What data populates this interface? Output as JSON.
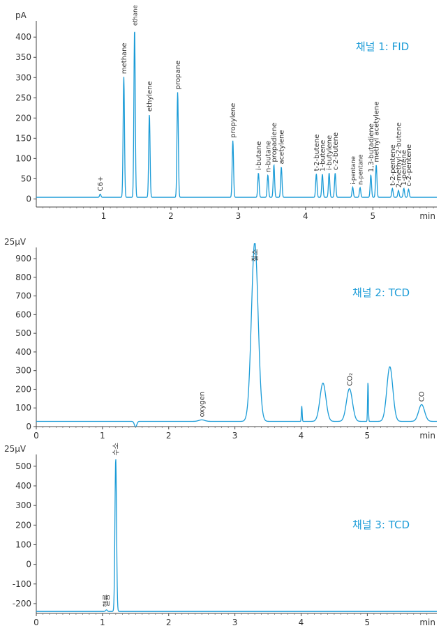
{
  "chart_data": [
    {
      "type": "line",
      "title": "채널 1: FID",
      "ylabel": "pA",
      "xlabel": "min",
      "xlim": [
        0,
        5.95
      ],
      "ylim": [
        -20,
        440
      ],
      "xticks": [
        1,
        2,
        3,
        4,
        5
      ],
      "yticks": [
        0,
        50,
        100,
        150,
        200,
        250,
        300,
        350,
        400
      ],
      "baseline": 4,
      "color": "#1a9bd7",
      "peaks": [
        {
          "label": "C6+",
          "x": 0.95,
          "height": 8
        },
        {
          "label": "methane",
          "x": 1.3,
          "height": 298
        },
        {
          "label": "ethane",
          "x": 1.46,
          "height": 417
        },
        {
          "label": "ethylene",
          "x": 1.68,
          "height": 205
        },
        {
          "label": "propane",
          "x": 2.1,
          "height": 260
        },
        {
          "label": "propylene",
          "x": 2.92,
          "height": 140
        },
        {
          "label": "i-butane",
          "x": 3.3,
          "height": 60
        },
        {
          "label": "n-butane",
          "x": 3.44,
          "height": 55
        },
        {
          "label": "propadiene",
          "x": 3.53,
          "height": 80
        },
        {
          "label": "acetylene",
          "x": 3.64,
          "height": 75
        },
        {
          "label": "t-2-butene",
          "x": 4.16,
          "height": 58
        },
        {
          "label": "1-butene",
          "x": 4.25,
          "height": 57
        },
        {
          "label": "i-butylene",
          "x": 4.35,
          "height": 60
        },
        {
          "label": "c-2-butene",
          "x": 4.44,
          "height": 60
        },
        {
          "label": "i-pentane",
          "x": 4.7,
          "height": 25
        },
        {
          "label": "n-pentane",
          "x": 4.81,
          "height": 24
        },
        {
          "label": "1,3-butadiene",
          "x": 4.97,
          "height": 55
        },
        {
          "label": "methyl acetylene",
          "x": 5.05,
          "height": 80
        },
        {
          "label": "t-2-pentene",
          "x": 5.29,
          "height": 22
        },
        {
          "label": "2-methyl-2-butene",
          "x": 5.38,
          "height": 17
        },
        {
          "label": "1-pentene",
          "x": 5.46,
          "height": 22
        },
        {
          "label": "c-2-pentene",
          "x": 5.53,
          "height": 20
        }
      ]
    },
    {
      "type": "line",
      "title": "채널 2: TCD",
      "ylabel": "25µV",
      "xlabel": "min",
      "xlim": [
        0,
        6.05
      ],
      "ylim": [
        0,
        960
      ],
      "xticks": [
        0,
        1,
        2,
        3,
        4,
        5
      ],
      "yticks": [
        0,
        100,
        200,
        300,
        400,
        500,
        600,
        700,
        800,
        900
      ],
      "baseline": 28,
      "color": "#1a9bd7",
      "peaks": [
        {
          "label": "",
          "x": 1.5,
          "height": -30
        },
        {
          "label": "oxygen",
          "x": 2.5,
          "height": 8
        },
        {
          "label": "질소",
          "x": 3.3,
          "height": 960
        },
        {
          "label": "",
          "x": 4.01,
          "height": 82
        },
        {
          "label": "",
          "x": 4.33,
          "height": 205
        },
        {
          "label": "CO₂",
          "x": 4.73,
          "height": 175
        },
        {
          "label": "",
          "x": 5.01,
          "height": 212
        },
        {
          "label": "",
          "x": 5.34,
          "height": 293
        },
        {
          "label": "CO",
          "x": 5.82,
          "height": 90
        }
      ]
    },
    {
      "type": "line",
      "title": "채널 3: TCD",
      "ylabel": "25µV",
      "xlabel": "min",
      "xlim": [
        0,
        6.05
      ],
      "ylim": [
        -250,
        560
      ],
      "xticks": [
        0,
        1,
        2,
        3,
        4,
        5
      ],
      "yticks": [
        -200,
        -100,
        0,
        100,
        200,
        300,
        400,
        500
      ],
      "baseline": -240,
      "color": "#1a9bd7",
      "peaks": [
        {
          "label": "헬륨",
          "x": 1.06,
          "height": 8
        },
        {
          "label": "수소",
          "x": 1.2,
          "height": 780
        }
      ]
    }
  ]
}
